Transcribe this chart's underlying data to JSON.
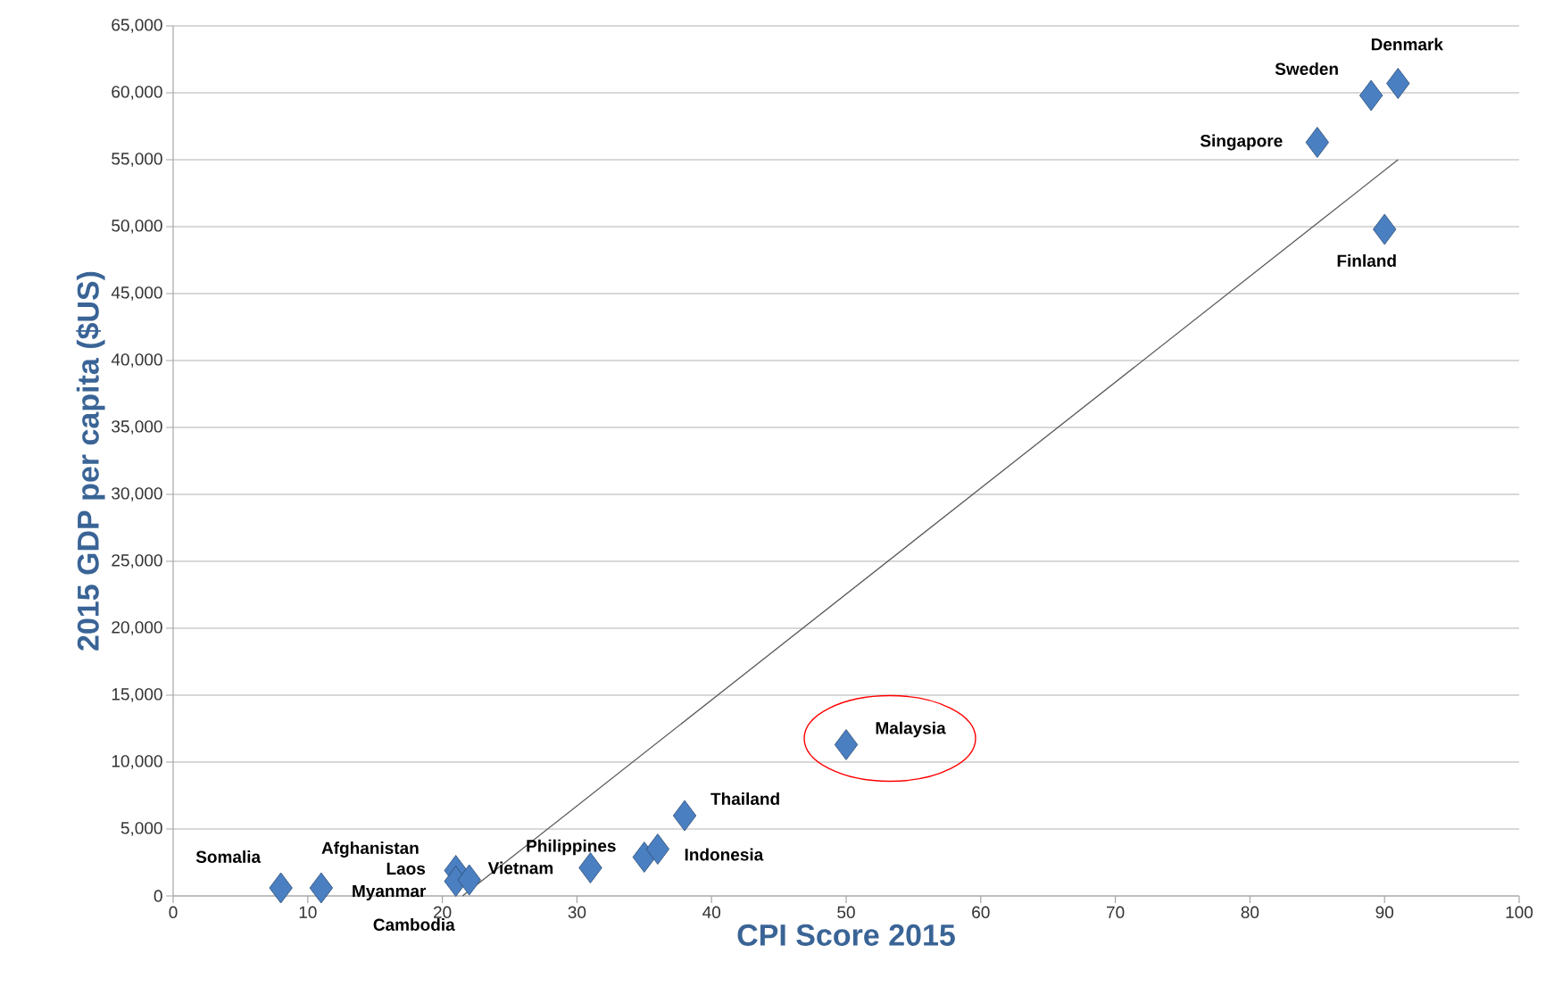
{
  "chart_data": {
    "type": "scatter",
    "xlabel": "CPI Score 2015",
    "ylabel": "2015 GDP per capita ($US)",
    "xlim": [
      0,
      100
    ],
    "xticks": [
      0,
      10,
      20,
      30,
      40,
      50,
      60,
      70,
      80,
      90,
      100
    ],
    "ylim": [
      0,
      65000
    ],
    "yticks": [
      0,
      {
        "value": 5000,
        "label": "5,000"
      },
      {
        "value": 10000,
        "label": "10,000"
      },
      {
        "value": 15000,
        "label": "15,000"
      },
      {
        "value": 20000,
        "label": "20,000"
      },
      {
        "value": 25000,
        "label": "25,000"
      },
      {
        "value": 30000,
        "label": "30,000"
      },
      {
        "value": 35000,
        "label": "35,000"
      },
      {
        "value": 40000,
        "label": "40,000"
      },
      {
        "value": 45000,
        "label": "45,000"
      },
      {
        "value": 50000,
        "label": "50,000"
      },
      {
        "value": 55000,
        "label": "55,000"
      },
      {
        "value": 60000,
        "label": "60,000"
      },
      {
        "value": 65000,
        "label": "65,000"
      }
    ],
    "grid": "y",
    "marker": "diamond",
    "series": [
      {
        "color": "#4a7fc1",
        "x": [
          8,
          11,
          21,
          21,
          22,
          31,
          35,
          36,
          38,
          50,
          85,
          89,
          91,
          90
        ],
        "values": [
          600,
          600,
          1900,
          1100,
          1200,
          2100,
          2900,
          3500,
          6000,
          11300,
          56300,
          59800,
          60700,
          49800
        ]
      },
      {
        "type": "line",
        "color": "#595959",
        "line_style": "solid",
        "marker": "none",
        "x": [
          21.5,
          91
        ],
        "values": [
          0,
          55000
        ]
      }
    ],
    "annotations": [
      {
        "text": "Somalia",
        "x": 8,
        "y": 600
      },
      {
        "text": "Afghanistan",
        "x": 11,
        "y": 600
      },
      {
        "text": "Laos",
        "x": 21,
        "y": 1900
      },
      {
        "text": "Myanmar",
        "x": 21,
        "y": 1100
      },
      {
        "text": "Cambodia",
        "x": 22,
        "y": 1200
      },
      {
        "text": "Vietnam",
        "x": 31,
        "y": 2100
      },
      {
        "text": "Philippines",
        "x": 35,
        "y": 2900
      },
      {
        "text": "Indonesia",
        "x": 36,
        "y": 3500
      },
      {
        "text": "Thailand",
        "x": 38,
        "y": 6000
      },
      {
        "text": "Malaysia",
        "x": 50,
        "y": 11300
      },
      {
        "text": "Singapore",
        "x": 85,
        "y": 56300
      },
      {
        "text": "Sweden",
        "x": 89,
        "y": 59800
      },
      {
        "text": "Denmark",
        "x": 91,
        "y": 60700
      },
      {
        "text": "Finland",
        "x": 90,
        "y": 49800
      }
    ]
  }
}
